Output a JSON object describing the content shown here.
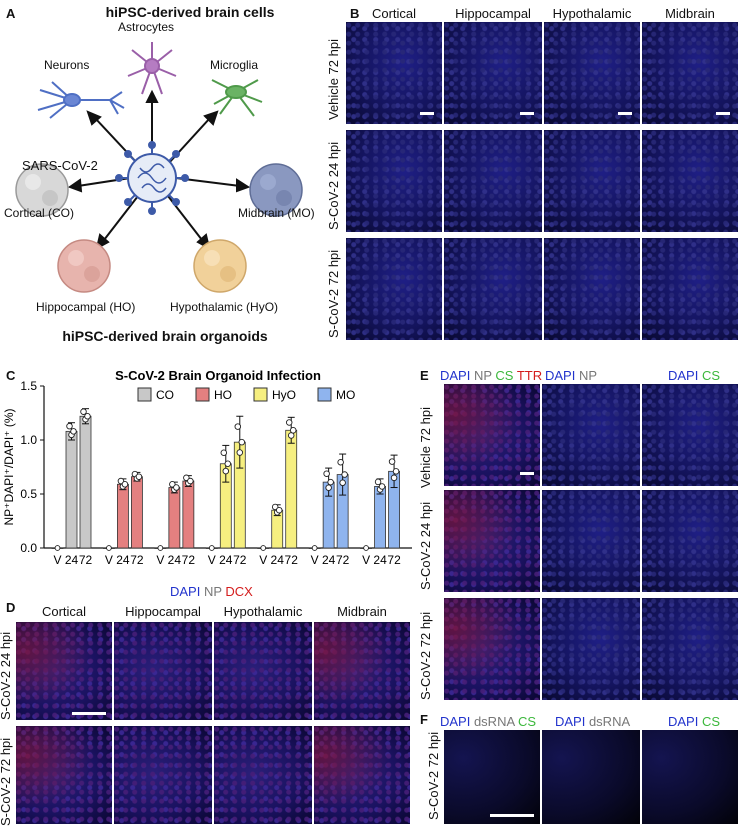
{
  "panel_a": {
    "label": "A",
    "title_top": "hiPSC-derived brain cells",
    "title_bottom": "hiPSC-derived brain organoids",
    "cells": [
      "Astrocytes",
      "Neurons",
      "Microglia"
    ],
    "virus": "SARS-CoV-2",
    "organoids": [
      "Cortical (CO)",
      "Midbrain (MO)",
      "Hippocampal (HO)",
      "Hypothalamic (HyO)"
    ],
    "colors": {
      "neuron": "#4f6fc4",
      "astrocyte": "#9a5fa8",
      "microglia": "#4f9a4a",
      "virus": "#3d5aa8",
      "co": "#d8d8d8",
      "mo": "#8a98c0",
      "ho": "#e7b4ad",
      "hyo": "#f1d19a"
    }
  },
  "panel_b": {
    "label": "B",
    "columns": [
      "Cortical",
      "Hippocampal",
      "Hypothalamic",
      "Midbrain"
    ],
    "rows": [
      "Vehicle 72 hpi",
      "S-CoV-2 24 hpi",
      "S-CoV-2 72 hpi"
    ]
  },
  "panel_c": {
    "label": "C",
    "chart_data": {
      "type": "bar",
      "title": "S-CoV-2 Brain Organoid Infection",
      "ylabel": "NP⁺DAPI⁺/DAPI⁺ (%)",
      "ylim": [
        0,
        1.5
      ],
      "yticks": [
        "0.0",
        "0.5",
        "1.0",
        "1.5"
      ],
      "legend": [
        "CO",
        "HO",
        "HyO",
        "MO"
      ],
      "legend_colors": [
        "#c8c8c8",
        "#e48080",
        "#f6ef80",
        "#8fb4ee"
      ],
      "groups": [
        {
          "series": "CO",
          "color": "#c8c8c8",
          "categories": [
            "V",
            "24",
            "72"
          ],
          "values": [
            0.0,
            1.08,
            1.22
          ],
          "errors": [
            0.0,
            0.08,
            0.07
          ]
        },
        {
          "series": "HO",
          "color": "#e48080",
          "categories": [
            "V",
            "24",
            "72"
          ],
          "values": [
            0.0,
            0.59,
            0.66
          ],
          "errors": [
            0.0,
            0.05,
            0.04
          ]
        },
        {
          "series": "HO",
          "color": "#e48080",
          "categories": [
            "V",
            "24",
            "72"
          ],
          "values": [
            0.0,
            0.56,
            0.62
          ],
          "errors": [
            0.0,
            0.05,
            0.05
          ]
        },
        {
          "series": "HyO",
          "color": "#f6ef80",
          "categories": [
            "V",
            "24",
            "72"
          ],
          "values": [
            0.0,
            0.78,
            0.98
          ],
          "errors": [
            0.0,
            0.17,
            0.24
          ]
        },
        {
          "series": "HyO",
          "color": "#f6ef80",
          "categories": [
            "V",
            "24",
            "72"
          ],
          "values": [
            0.0,
            0.35,
            1.09
          ],
          "errors": [
            0.0,
            0.05,
            0.12
          ]
        },
        {
          "series": "MO",
          "color": "#8fb4ee",
          "categories": [
            "V",
            "24",
            "72"
          ],
          "values": [
            0.0,
            0.61,
            0.68
          ],
          "errors": [
            0.0,
            0.13,
            0.19
          ]
        },
        {
          "series": "MO",
          "color": "#8fb4ee",
          "categories": [
            "V",
            "24",
            "72"
          ],
          "values": [
            0.0,
            0.57,
            0.71
          ],
          "errors": [
            0.0,
            0.07,
            0.15
          ]
        }
      ]
    }
  },
  "panel_d": {
    "label": "D",
    "stain": [
      {
        "t": "DAPI",
        "c": "#2233cc"
      },
      {
        "t": " NP ",
        "c": "#777777"
      },
      {
        "t": "DCX",
        "c": "#d41c1c"
      }
    ],
    "columns": [
      "Cortical",
      "Hippocampal",
      "Hypothalamic",
      "Midbrain"
    ],
    "rows": [
      "S-CoV-2 24 hpi",
      "S-CoV-2 72 hpi"
    ]
  },
  "panel_e": {
    "label": "E",
    "stain1": [
      {
        "t": "DAPI",
        "c": "#2233cc"
      },
      {
        "t": " NP ",
        "c": "#777777"
      },
      {
        "t": "CS",
        "c": "#3cb83c"
      },
      {
        "t": " TTR",
        "c": "#d41c1c"
      }
    ],
    "stain2": [
      {
        "t": "DAPI",
        "c": "#2233cc"
      },
      {
        "t": " NP",
        "c": "#777777"
      }
    ],
    "stain3": [
      {
        "t": "DAPI",
        "c": "#2233cc"
      },
      {
        "t": " CS",
        "c": "#3cb83c"
      }
    ],
    "rows": [
      "Vehicle 72 hpi",
      "S-CoV-2 24 hpi",
      "S-CoV-2 72 hpi"
    ]
  },
  "panel_f": {
    "label": "F",
    "stain1": [
      {
        "t": "DAPI",
        "c": "#2233cc"
      },
      {
        "t": " dsRNA ",
        "c": "#777777"
      },
      {
        "t": "CS",
        "c": "#3cb83c"
      }
    ],
    "stain2": [
      {
        "t": "DAPI",
        "c": "#2233cc"
      },
      {
        "t": " dsRNA",
        "c": "#777777"
      }
    ],
    "stain3": [
      {
        "t": "DAPI",
        "c": "#2233cc"
      },
      {
        "t": " CS",
        "c": "#3cb83c"
      }
    ],
    "rows": [
      "S-CoV-2 72 hpi"
    ]
  }
}
